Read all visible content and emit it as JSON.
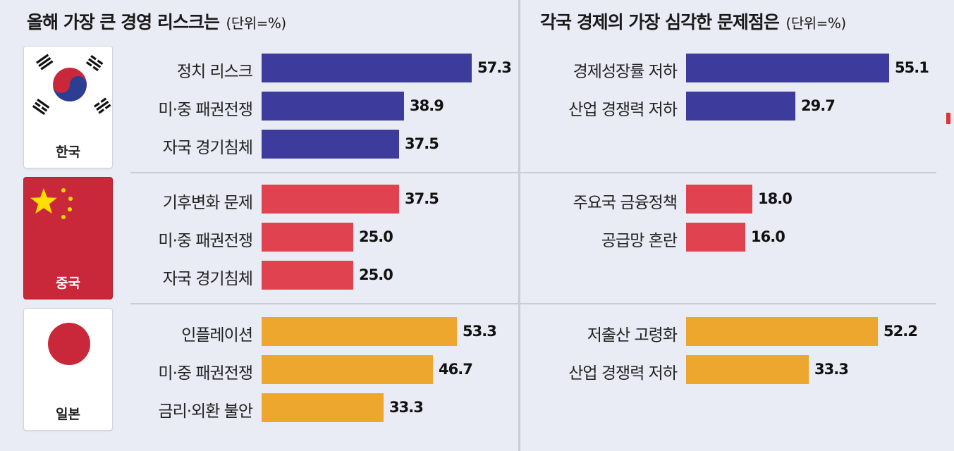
{
  "titles": {
    "left": "올해 가장 큰 경영 리스크는",
    "right": "각국 경제의 가장 심각한 문제점은",
    "unit": "(단위=%)"
  },
  "colors": {
    "korea": "#3d3b9c",
    "china": "#e0424f",
    "japan": "#eda62e",
    "background": "#e9ecf4"
  },
  "countries": [
    {
      "name": "한국",
      "flag": "korea-flag-icon"
    },
    {
      "name": "중국",
      "flag": "china-flag-icon"
    },
    {
      "name": "일본",
      "flag": "japan-flag-icon"
    }
  ],
  "chart_data": [
    {
      "type": "bar",
      "orientation": "horizontal",
      "title": "올해 가장 큰 경영 리스크는",
      "unit": "(단위=%)",
      "groups": [
        {
          "country": "한국",
          "color": "#3d3b9c",
          "categories": [
            "정치 리스크",
            "미·중 패권전쟁",
            "자국 경기침체"
          ],
          "values": [
            57.3,
            38.9,
            37.5
          ],
          "labels": [
            "57.3",
            "38.9",
            "37.5"
          ]
        },
        {
          "country": "중국",
          "color": "#e0424f",
          "categories": [
            "기후변화 문제",
            "미·중 패권전쟁",
            "자국 경기침체"
          ],
          "values": [
            37.5,
            25.0,
            25.0
          ],
          "labels": [
            "37.5",
            "25.0",
            "25.0"
          ]
        },
        {
          "country": "일본",
          "color": "#eda62e",
          "categories": [
            "인플레이션",
            "미·중 패권전쟁",
            "금리·외환 불안"
          ],
          "values": [
            53.3,
            46.7,
            33.3
          ],
          "labels": [
            "53.3",
            "46.7",
            "33.3"
          ]
        }
      ]
    },
    {
      "type": "bar",
      "orientation": "horizontal",
      "title": "각국 경제의 가장 심각한 문제점은",
      "unit": "(단위=%)",
      "groups": [
        {
          "country": "한국",
          "color": "#3d3b9c",
          "categories": [
            "경제성장률 저하",
            "산업 경쟁력 저하"
          ],
          "values": [
            55.1,
            29.7
          ],
          "labels": [
            "55.1",
            "29.7"
          ]
        },
        {
          "country": "중국",
          "color": "#e0424f",
          "categories": [
            "주요국 금융정책",
            "공급망 혼란"
          ],
          "values": [
            18.0,
            16.0
          ],
          "labels": [
            "18.0",
            "16.0"
          ]
        },
        {
          "country": "일본",
          "color": "#eda62e",
          "categories": [
            "저출산 고령화",
            "산업 경쟁력 저하"
          ],
          "values": [
            52.2,
            33.3
          ],
          "labels": [
            "52.2",
            "33.3"
          ]
        }
      ]
    }
  ]
}
